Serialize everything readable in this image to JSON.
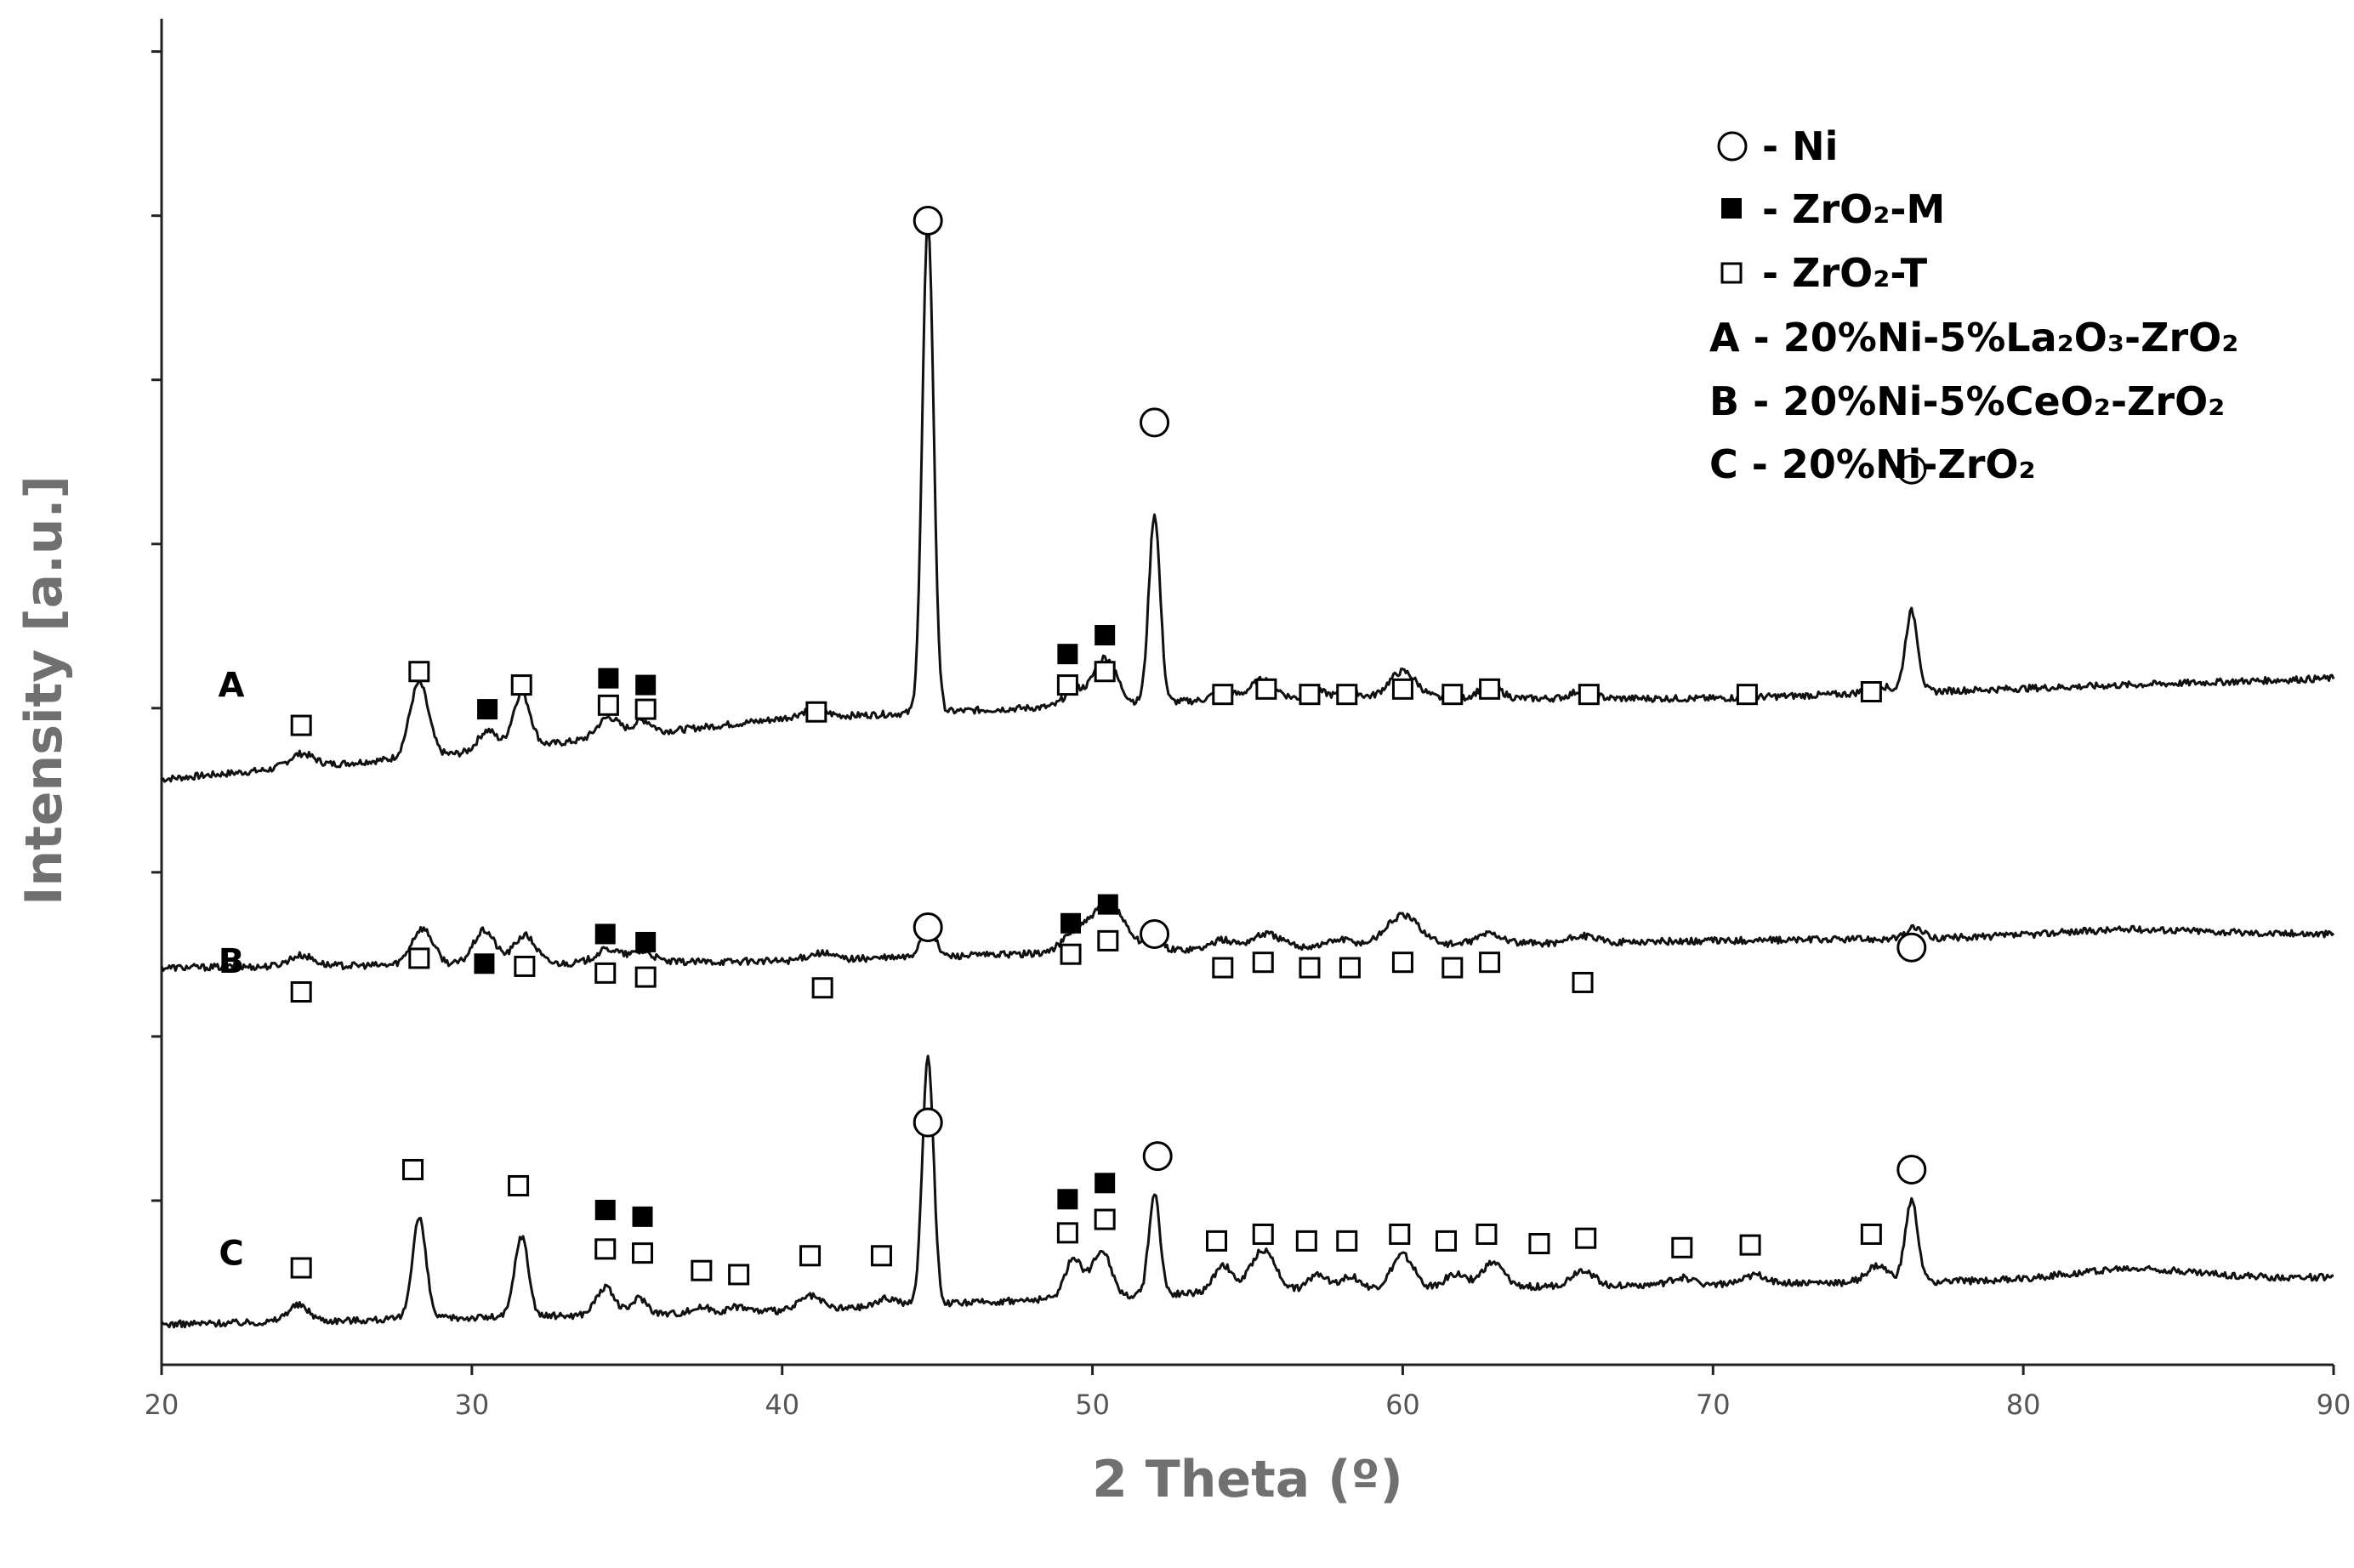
{
  "chart_data": {
    "type": "line",
    "xlabel": "2 Theta (º)",
    "ylabel": "Intensity [a.u.]",
    "xlim": [
      20,
      90
    ],
    "x_ticks": [
      "20",
      "30",
      "40",
      "50",
      "60",
      "70",
      "80",
      "90"
    ],
    "ylim": [
      0,
      10
    ],
    "y_tick_count": 8,
    "grid": false,
    "legend_position": "top-right",
    "legend": [
      {
        "marker": "open-circle",
        "label": "- Ni"
      },
      {
        "marker": "filled-square",
        "label": "- ZrO₂-M"
      },
      {
        "marker": "open-square",
        "label": "- ZrO₂-T"
      },
      {
        "marker": "none",
        "label": "A - 20%Ni-5%La₂O₃-ZrO₂"
      },
      {
        "marker": "none",
        "label": "B - 20%Ni-5%CeO₂-ZrO₂"
      },
      {
        "marker": "none",
        "label": "C - 20%Ni-ZrO₂"
      }
    ],
    "series": [
      {
        "name": "A",
        "baseline": [
          [
            20,
            4.35
          ],
          [
            30,
            4.55
          ],
          [
            40,
            4.8
          ],
          [
            45,
            4.85
          ],
          [
            55,
            4.95
          ],
          [
            70,
            4.95
          ],
          [
            90,
            5.1
          ]
        ],
        "peaks": [
          {
            "x": 24.5,
            "h": 0.1,
            "w": 0.4
          },
          {
            "x": 28.3,
            "h": 0.55,
            "w": 0.3
          },
          {
            "x": 30.5,
            "h": 0.15,
            "w": 0.3
          },
          {
            "x": 31.6,
            "h": 0.4,
            "w": 0.28
          },
          {
            "x": 34.4,
            "h": 0.15,
            "w": 0.35
          },
          {
            "x": 35.5,
            "h": 0.1,
            "w": 0.3
          },
          {
            "x": 41.0,
            "h": 0.06,
            "w": 0.4
          },
          {
            "x": 44.7,
            "h": 3.65,
            "w": 0.18
          },
          {
            "x": 49.4,
            "h": 0.12,
            "w": 0.3
          },
          {
            "x": 50.4,
            "h": 0.35,
            "w": 0.38
          },
          {
            "x": 52.0,
            "h": 1.4,
            "w": 0.18
          },
          {
            "x": 54.2,
            "h": 0.07,
            "w": 0.3
          },
          {
            "x": 55.5,
            "h": 0.14,
            "w": 0.4
          },
          {
            "x": 57.3,
            "h": 0.05,
            "w": 0.3
          },
          {
            "x": 58.3,
            "h": 0.06,
            "w": 0.3
          },
          {
            "x": 60.0,
            "h": 0.2,
            "w": 0.45
          },
          {
            "x": 62.8,
            "h": 0.1,
            "w": 0.35
          },
          {
            "x": 65.8,
            "h": 0.06,
            "w": 0.35
          },
          {
            "x": 75.3,
            "h": 0.06,
            "w": 0.35
          },
          {
            "x": 76.4,
            "h": 0.6,
            "w": 0.2
          }
        ]
      },
      {
        "name": "B",
        "baseline": [
          [
            20,
            2.95
          ],
          [
            40,
            3.0
          ],
          [
            55,
            3.1
          ],
          [
            70,
            3.15
          ],
          [
            90,
            3.2
          ]
        ],
        "peaks": [
          {
            "x": 24.5,
            "h": 0.08,
            "w": 0.4
          },
          {
            "x": 28.4,
            "h": 0.27,
            "w": 0.35
          },
          {
            "x": 30.4,
            "h": 0.25,
            "w": 0.35
          },
          {
            "x": 31.7,
            "h": 0.21,
            "w": 0.35
          },
          {
            "x": 34.4,
            "h": 0.1,
            "w": 0.4
          },
          {
            "x": 35.5,
            "h": 0.08,
            "w": 0.35
          },
          {
            "x": 41.2,
            "h": 0.05,
            "w": 0.4
          },
          {
            "x": 44.7,
            "h": 0.25,
            "w": 0.22
          },
          {
            "x": 49.4,
            "h": 0.12,
            "w": 0.4
          },
          {
            "x": 50.5,
            "h": 0.35,
            "w": 0.55
          },
          {
            "x": 52.0,
            "h": 0.12,
            "w": 0.2
          },
          {
            "x": 54.2,
            "h": 0.06,
            "w": 0.35
          },
          {
            "x": 55.6,
            "h": 0.1,
            "w": 0.45
          },
          {
            "x": 58.0,
            "h": 0.05,
            "w": 0.4
          },
          {
            "x": 60.0,
            "h": 0.22,
            "w": 0.55
          },
          {
            "x": 62.8,
            "h": 0.08,
            "w": 0.4
          },
          {
            "x": 65.8,
            "h": 0.05,
            "w": 0.4
          },
          {
            "x": 76.5,
            "h": 0.08,
            "w": 0.25
          },
          {
            "x": 83.5,
            "h": 0.05,
            "w": 2.5
          }
        ]
      },
      {
        "name": "C",
        "baseline": [
          [
            20,
            0.3
          ],
          [
            40,
            0.4
          ],
          [
            45,
            0.45
          ],
          [
            55,
            0.55
          ],
          [
            70,
            0.6
          ],
          [
            90,
            0.65
          ]
        ],
        "peaks": [
          {
            "x": 24.4,
            "h": 0.12,
            "w": 0.35
          },
          {
            "x": 28.3,
            "h": 0.75,
            "w": 0.22
          },
          {
            "x": 31.6,
            "h": 0.6,
            "w": 0.22
          },
          {
            "x": 34.3,
            "h": 0.2,
            "w": 0.3
          },
          {
            "x": 35.4,
            "h": 0.12,
            "w": 0.25
          },
          {
            "x": 37.4,
            "h": 0.04,
            "w": 0.3
          },
          {
            "x": 38.6,
            "h": 0.04,
            "w": 0.3
          },
          {
            "x": 40.9,
            "h": 0.1,
            "w": 0.35
          },
          {
            "x": 43.4,
            "h": 0.06,
            "w": 0.35
          },
          {
            "x": 44.7,
            "h": 1.85,
            "w": 0.18
          },
          {
            "x": 49.4,
            "h": 0.3,
            "w": 0.28
          },
          {
            "x": 50.3,
            "h": 0.35,
            "w": 0.3
          },
          {
            "x": 52.0,
            "h": 0.75,
            "w": 0.18
          },
          {
            "x": 54.2,
            "h": 0.2,
            "w": 0.28
          },
          {
            "x": 55.5,
            "h": 0.3,
            "w": 0.4
          },
          {
            "x": 57.3,
            "h": 0.12,
            "w": 0.3
          },
          {
            "x": 58.3,
            "h": 0.1,
            "w": 0.3
          },
          {
            "x": 60.0,
            "h": 0.25,
            "w": 0.35
          },
          {
            "x": 61.7,
            "h": 0.1,
            "w": 0.35
          },
          {
            "x": 62.9,
            "h": 0.18,
            "w": 0.35
          },
          {
            "x": 65.8,
            "h": 0.12,
            "w": 0.35
          },
          {
            "x": 69.0,
            "h": 0.05,
            "w": 0.35
          },
          {
            "x": 71.4,
            "h": 0.06,
            "w": 0.35
          },
          {
            "x": 75.3,
            "h": 0.12,
            "w": 0.35
          },
          {
            "x": 76.4,
            "h": 0.6,
            "w": 0.2
          },
          {
            "x": 83.5,
            "h": 0.08,
            "w": 2.0
          }
        ]
      }
    ],
    "markers": [
      {
        "series": "A",
        "type": "open-circle",
        "x": 44.7,
        "y": 8.5
      },
      {
        "series": "A",
        "type": "open-circle",
        "x": 52.0,
        "y": 7.0
      },
      {
        "series": "A",
        "type": "open-circle",
        "x": 76.4,
        "y": 6.65
      },
      {
        "series": "A",
        "type": "open-square",
        "x": 24.5,
        "y": 4.75
      },
      {
        "series": "A",
        "type": "open-square",
        "x": 28.3,
        "y": 5.15
      },
      {
        "series": "A",
        "type": "filled-square",
        "x": 30.5,
        "y": 4.87
      },
      {
        "series": "A",
        "type": "open-square",
        "x": 31.6,
        "y": 5.05
      },
      {
        "series": "A",
        "type": "filled-square",
        "x": 34.4,
        "y": 5.1
      },
      {
        "series": "A",
        "type": "open-square",
        "x": 34.4,
        "y": 4.9
      },
      {
        "series": "A",
        "type": "filled-square",
        "x": 35.6,
        "y": 5.05
      },
      {
        "series": "A",
        "type": "open-square",
        "x": 35.6,
        "y": 4.87
      },
      {
        "series": "A",
        "type": "open-square",
        "x": 41.1,
        "y": 4.85
      },
      {
        "series": "A",
        "type": "filled-square",
        "x": 49.2,
        "y": 5.28
      },
      {
        "series": "A",
        "type": "open-square",
        "x": 49.2,
        "y": 5.05
      },
      {
        "series": "A",
        "type": "filled-square",
        "x": 50.4,
        "y": 5.42
      },
      {
        "series": "A",
        "type": "open-square",
        "x": 50.4,
        "y": 5.15
      },
      {
        "series": "A",
        "type": "open-square",
        "x": 54.2,
        "y": 4.98
      },
      {
        "series": "A",
        "type": "open-square",
        "x": 55.6,
        "y": 5.02
      },
      {
        "series": "A",
        "type": "open-square",
        "x": 57.0,
        "y": 4.98
      },
      {
        "series": "A",
        "type": "open-square",
        "x": 58.2,
        "y": 4.98
      },
      {
        "series": "A",
        "type": "open-square",
        "x": 60.0,
        "y": 5.02
      },
      {
        "series": "A",
        "type": "open-square",
        "x": 61.6,
        "y": 4.98
      },
      {
        "series": "A",
        "type": "open-square",
        "x": 62.8,
        "y": 5.02
      },
      {
        "series": "A",
        "type": "open-square",
        "x": 66.0,
        "y": 4.98
      },
      {
        "series": "A",
        "type": "open-square",
        "x": 71.1,
        "y": 4.98
      },
      {
        "series": "A",
        "type": "open-square",
        "x": 75.1,
        "y": 5.0
      },
      {
        "series": "B",
        "type": "open-circle",
        "x": 44.7,
        "y": 3.25
      },
      {
        "series": "B",
        "type": "open-circle",
        "x": 52.0,
        "y": 3.2
      },
      {
        "series": "B",
        "type": "open-circle",
        "x": 76.4,
        "y": 3.1
      },
      {
        "series": "B",
        "type": "open-square",
        "x": 24.5,
        "y": 2.77
      },
      {
        "series": "B",
        "type": "open-square",
        "x": 28.3,
        "y": 3.02
      },
      {
        "series": "B",
        "type": "filled-square",
        "x": 30.4,
        "y": 2.98
      },
      {
        "series": "B",
        "type": "open-square",
        "x": 31.7,
        "y": 2.96
      },
      {
        "series": "B",
        "type": "filled-square",
        "x": 34.3,
        "y": 3.2
      },
      {
        "series": "B",
        "type": "open-square",
        "x": 34.3,
        "y": 2.91
      },
      {
        "series": "B",
        "type": "filled-square",
        "x": 35.6,
        "y": 3.14
      },
      {
        "series": "B",
        "type": "open-square",
        "x": 35.6,
        "y": 2.88
      },
      {
        "series": "B",
        "type": "open-square",
        "x": 41.3,
        "y": 2.8
      },
      {
        "series": "B",
        "type": "filled-square",
        "x": 49.3,
        "y": 3.28
      },
      {
        "series": "B",
        "type": "open-square",
        "x": 49.3,
        "y": 3.05
      },
      {
        "series": "B",
        "type": "filled-square",
        "x": 50.5,
        "y": 3.42
      },
      {
        "series": "B",
        "type": "open-square",
        "x": 50.5,
        "y": 3.15
      },
      {
        "series": "B",
        "type": "open-square",
        "x": 54.2,
        "y": 2.95
      },
      {
        "series": "B",
        "type": "open-square",
        "x": 55.5,
        "y": 2.99
      },
      {
        "series": "B",
        "type": "open-square",
        "x": 57.0,
        "y": 2.95
      },
      {
        "series": "B",
        "type": "open-square",
        "x": 58.3,
        "y": 2.95
      },
      {
        "series": "B",
        "type": "open-square",
        "x": 60.0,
        "y": 2.99
      },
      {
        "series": "B",
        "type": "open-square",
        "x": 61.6,
        "y": 2.95
      },
      {
        "series": "B",
        "type": "open-square",
        "x": 62.8,
        "y": 2.99
      },
      {
        "series": "B",
        "type": "open-square",
        "x": 65.8,
        "y": 2.84
      },
      {
        "series": "C",
        "type": "open-circle",
        "x": 44.7,
        "y": 1.8
      },
      {
        "series": "C",
        "type": "open-circle",
        "x": 52.1,
        "y": 1.55
      },
      {
        "series": "C",
        "type": "open-circle",
        "x": 76.4,
        "y": 1.45
      },
      {
        "series": "C",
        "type": "open-square",
        "x": 24.5,
        "y": 0.72
      },
      {
        "series": "C",
        "type": "open-square",
        "x": 28.1,
        "y": 1.45
      },
      {
        "series": "C",
        "type": "open-square",
        "x": 31.5,
        "y": 1.33
      },
      {
        "series": "C",
        "type": "filled-square",
        "x": 34.3,
        "y": 1.15
      },
      {
        "series": "C",
        "type": "open-square",
        "x": 34.3,
        "y": 0.86
      },
      {
        "series": "C",
        "type": "filled-square",
        "x": 35.5,
        "y": 1.1
      },
      {
        "series": "C",
        "type": "open-square",
        "x": 35.5,
        "y": 0.83
      },
      {
        "series": "C",
        "type": "open-square",
        "x": 37.4,
        "y": 0.7
      },
      {
        "series": "C",
        "type": "open-square",
        "x": 38.6,
        "y": 0.67
      },
      {
        "series": "C",
        "type": "open-square",
        "x": 40.9,
        "y": 0.81
      },
      {
        "series": "C",
        "type": "open-square",
        "x": 43.2,
        "y": 0.81
      },
      {
        "series": "C",
        "type": "filled-square",
        "x": 49.2,
        "y": 1.23
      },
      {
        "series": "C",
        "type": "open-square",
        "x": 49.2,
        "y": 0.98
      },
      {
        "series": "C",
        "type": "filled-square",
        "x": 50.4,
        "y": 1.35
      },
      {
        "series": "C",
        "type": "open-square",
        "x": 50.4,
        "y": 1.08
      },
      {
        "series": "C",
        "type": "open-square",
        "x": 54.0,
        "y": 0.92
      },
      {
        "series": "C",
        "type": "open-square",
        "x": 55.5,
        "y": 0.97
      },
      {
        "series": "C",
        "type": "open-square",
        "x": 56.9,
        "y": 0.92
      },
      {
        "series": "C",
        "type": "open-square",
        "x": 58.2,
        "y": 0.92
      },
      {
        "series": "C",
        "type": "open-square",
        "x": 59.9,
        "y": 0.97
      },
      {
        "series": "C",
        "type": "open-square",
        "x": 61.4,
        "y": 0.92
      },
      {
        "series": "C",
        "type": "open-square",
        "x": 62.7,
        "y": 0.97
      },
      {
        "series": "C",
        "type": "open-square",
        "x": 64.4,
        "y": 0.9
      },
      {
        "series": "C",
        "type": "open-square",
        "x": 65.9,
        "y": 0.94
      },
      {
        "series": "C",
        "type": "open-square",
        "x": 69.0,
        "y": 0.87
      },
      {
        "series": "C",
        "type": "open-square",
        "x": 71.2,
        "y": 0.89
      },
      {
        "series": "C",
        "type": "open-square",
        "x": 75.1,
        "y": 0.97
      }
    ],
    "curve_labels": [
      {
        "text": "A",
        "y": 5.05
      },
      {
        "text": "B",
        "y": 3.0
      },
      {
        "text": "C",
        "y": 0.83
      }
    ]
  }
}
